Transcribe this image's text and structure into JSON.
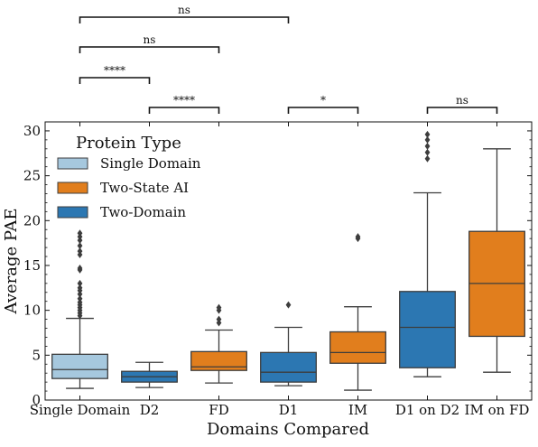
{
  "chart_data": {
    "type": "box",
    "title": "",
    "xlabel": "Domains Compared",
    "ylabel": "Average PAE",
    "ylim": [
      0,
      31
    ],
    "yticks": [
      0,
      5,
      10,
      15,
      20,
      25,
      30
    ],
    "grid": false,
    "legend": {
      "title": "Protein Type",
      "placement": "top-left",
      "entries": [
        {
          "label": "Single Domain",
          "color": "#a6c8de"
        },
        {
          "label": "Two-State AI",
          "color": "#e17e1d"
        },
        {
          "label": "Two-Domain",
          "color": "#2c77b2"
        }
      ]
    },
    "categories": [
      "Single Domain",
      "D2",
      "FD",
      "D1",
      "IM",
      "D1 on D2",
      "IM on FD"
    ],
    "boxes": [
      {
        "category": "Single Domain",
        "type": "Single Domain",
        "whisker_low": 1.3,
        "q1": 2.4,
        "median": 3.4,
        "q3": 5.1,
        "whisker_high": 9.1,
        "outliers": [
          9.4,
          9.7,
          10.0,
          10.3,
          10.6,
          10.9,
          11.3,
          11.8,
          12.2,
          12.5,
          13.0,
          14.5,
          14.7,
          16.2,
          16.6,
          17.2,
          17.8,
          18.2,
          18.6
        ]
      },
      {
        "category": "D2",
        "type": "Two-Domain",
        "whisker_low": 1.4,
        "q1": 2.0,
        "median": 2.6,
        "q3": 3.2,
        "whisker_high": 4.2,
        "outliers": []
      },
      {
        "category": "FD",
        "type": "Two-State AI",
        "whisker_low": 1.9,
        "q1": 3.3,
        "median": 3.7,
        "q3": 5.4,
        "whisker_high": 7.8,
        "outliers": [
          8.6,
          9.0,
          10.0,
          10.3
        ]
      },
      {
        "category": "D1",
        "type": "Two-Domain",
        "whisker_low": 1.6,
        "q1": 2.0,
        "median": 3.1,
        "q3": 5.3,
        "whisker_high": 8.1,
        "outliers": [
          10.6
        ]
      },
      {
        "category": "IM",
        "type": "Two-State AI",
        "whisker_low": 1.1,
        "q1": 4.1,
        "median": 5.3,
        "q3": 7.6,
        "whisker_high": 10.4,
        "outliers": [
          18.0,
          18.2
        ]
      },
      {
        "category": "D1 on D2",
        "type": "Two-Domain",
        "whisker_low": 2.6,
        "q1": 3.6,
        "median": 8.1,
        "q3": 12.1,
        "whisker_high": 23.1,
        "outliers": [
          26.9,
          27.6,
          28.3,
          29.0,
          29.6
        ]
      },
      {
        "category": "IM on FD",
        "type": "Two-State AI",
        "whisker_low": 3.1,
        "q1": 7.1,
        "median": 13.0,
        "q3": 18.8,
        "whisker_high": 28.0,
        "outliers": []
      }
    ],
    "significance": [
      {
        "from": "Single Domain",
        "to": "D1",
        "label": "ns",
        "level": 4
      },
      {
        "from": "Single Domain",
        "to": "FD",
        "label": "ns",
        "level": 3
      },
      {
        "from": "Single Domain",
        "to": "D2",
        "label": "****",
        "level": 2
      },
      {
        "from": "D2",
        "to": "FD",
        "label": "****",
        "level": 1
      },
      {
        "from": "D1",
        "to": "IM",
        "label": "*",
        "level": 1
      },
      {
        "from": "D1 on D2",
        "to": "IM on FD",
        "label": "ns",
        "level": 1
      }
    ]
  }
}
